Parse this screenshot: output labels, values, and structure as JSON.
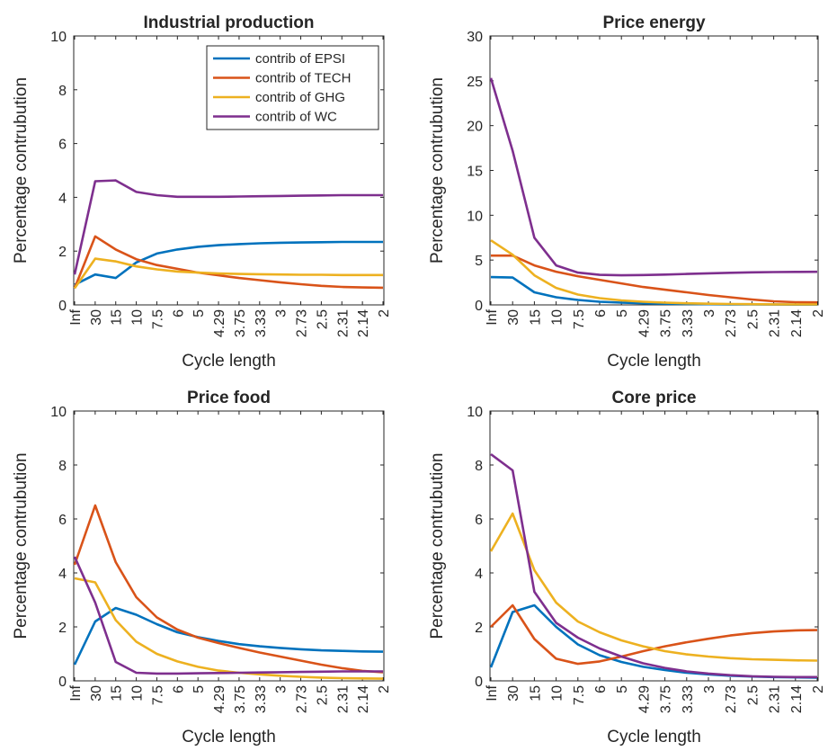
{
  "chart_data": [
    {
      "type": "line",
      "title": "Industrial production",
      "xlabel": "Cycle length",
      "ylabel": "Percentage contrubution",
      "ylim": [
        0,
        10
      ],
      "yticks": [
        "0",
        "2",
        "4",
        "6",
        "8",
        "10"
      ],
      "categories": [
        "Inf",
        "30",
        "15",
        "10",
        "7.5",
        "6",
        "5",
        "4.29",
        "3.75",
        "3.33",
        "3",
        "2.73",
        "2.5",
        "2.31",
        "2.14",
        "2"
      ],
      "series": [
        {
          "name": "contrib of EPSI",
          "values": [
            0.75,
            1.13,
            1.0,
            1.58,
            1.91,
            2.06,
            2.16,
            2.22,
            2.26,
            2.29,
            2.31,
            2.32,
            2.33,
            2.34,
            2.34,
            2.34
          ]
        },
        {
          "name": "contrib of TECH",
          "values": [
            0.62,
            2.55,
            2.06,
            1.7,
            1.48,
            1.34,
            1.2,
            1.1,
            1.0,
            0.92,
            0.84,
            0.77,
            0.71,
            0.67,
            0.65,
            0.64
          ]
        },
        {
          "name": "contrib of GHG",
          "values": [
            0.62,
            1.72,
            1.62,
            1.43,
            1.32,
            1.24,
            1.2,
            1.17,
            1.15,
            1.14,
            1.13,
            1.12,
            1.12,
            1.11,
            1.11,
            1.11
          ]
        },
        {
          "name": "contrib of WC",
          "values": [
            1.13,
            4.6,
            4.63,
            4.2,
            4.08,
            4.02,
            4.02,
            4.02,
            4.03,
            4.04,
            4.05,
            4.06,
            4.07,
            4.08,
            4.08,
            4.08
          ]
        }
      ],
      "legend": "top-right",
      "grid": false
    },
    {
      "type": "line",
      "title": "Price energy",
      "xlabel": "Cycle length",
      "ylabel": "Percentage contrubution",
      "ylim": [
        0,
        30
      ],
      "yticks": [
        "0",
        "5",
        "10",
        "15",
        "20",
        "25",
        "30"
      ],
      "categories": [
        "Inf",
        "30",
        "15",
        "10",
        "7.5",
        "6",
        "5",
        "4.29",
        "3.75",
        "3.33",
        "3",
        "2.73",
        "2.5",
        "2.31",
        "2.14",
        "2"
      ],
      "series": [
        {
          "name": "contrib of EPSI",
          "values": [
            3.1,
            3.05,
            1.4,
            0.85,
            0.55,
            0.35,
            0.25,
            0.18,
            0.13,
            0.1,
            0.08,
            0.06,
            0.05,
            0.04,
            0.03,
            0.03
          ]
        },
        {
          "name": "contrib of TECH",
          "values": [
            5.5,
            5.5,
            4.4,
            3.7,
            3.2,
            2.8,
            2.4,
            2.0,
            1.7,
            1.4,
            1.1,
            0.85,
            0.6,
            0.4,
            0.3,
            0.28
          ]
        },
        {
          "name": "contrib of GHG",
          "values": [
            7.2,
            5.6,
            3.3,
            1.9,
            1.15,
            0.75,
            0.5,
            0.35,
            0.25,
            0.18,
            0.13,
            0.1,
            0.08,
            0.06,
            0.05,
            0.05
          ]
        },
        {
          "name": "contrib of WC",
          "values": [
            25.3,
            17.2,
            7.5,
            4.4,
            3.6,
            3.35,
            3.3,
            3.33,
            3.38,
            3.45,
            3.52,
            3.58,
            3.63,
            3.66,
            3.68,
            3.69
          ]
        }
      ],
      "grid": false
    },
    {
      "type": "line",
      "title": "Price food",
      "xlabel": "Cycle length",
      "ylabel": "Percentage contrubution",
      "ylim": [
        0,
        10
      ],
      "yticks": [
        "0",
        "2",
        "4",
        "6",
        "8",
        "10"
      ],
      "categories": [
        "Inf",
        "30",
        "15",
        "10",
        "7.5",
        "6",
        "5",
        "4.29",
        "3.75",
        "3.33",
        "3",
        "2.73",
        "2.5",
        "2.31",
        "2.14",
        "2"
      ],
      "series": [
        {
          "name": "contrib of EPSI",
          "values": [
            0.6,
            2.2,
            2.7,
            2.45,
            2.1,
            1.8,
            1.62,
            1.48,
            1.36,
            1.28,
            1.22,
            1.17,
            1.13,
            1.11,
            1.09,
            1.08
          ]
        },
        {
          "name": "contrib of TECH",
          "values": [
            4.3,
            6.5,
            4.4,
            3.1,
            2.35,
            1.9,
            1.6,
            1.4,
            1.22,
            1.05,
            0.9,
            0.75,
            0.6,
            0.47,
            0.37,
            0.32
          ]
        },
        {
          "name": "contrib of GHG",
          "values": [
            3.8,
            3.65,
            2.25,
            1.45,
            1.0,
            0.72,
            0.52,
            0.38,
            0.3,
            0.24,
            0.19,
            0.15,
            0.12,
            0.1,
            0.09,
            0.08
          ]
        },
        {
          "name": "contrib of WC",
          "values": [
            4.6,
            2.9,
            0.7,
            0.3,
            0.27,
            0.27,
            0.28,
            0.29,
            0.3,
            0.31,
            0.32,
            0.33,
            0.34,
            0.35,
            0.35,
            0.35
          ]
        }
      ],
      "grid": false
    },
    {
      "type": "line",
      "title": "Core price",
      "xlabel": "Cycle length",
      "ylabel": "Percentage contrubution",
      "ylim": [
        0,
        10
      ],
      "yticks": [
        "0",
        "2",
        "4",
        "6",
        "8",
        "10"
      ],
      "categories": [
        "Inf",
        "30",
        "15",
        "10",
        "7.5",
        "6",
        "5",
        "4.29",
        "3.75",
        "3.33",
        "3",
        "2.73",
        "2.5",
        "2.31",
        "2.14",
        "2"
      ],
      "series": [
        {
          "name": "contrib of EPSI",
          "values": [
            0.5,
            2.55,
            2.8,
            2.0,
            1.35,
            0.95,
            0.7,
            0.52,
            0.4,
            0.3,
            0.24,
            0.19,
            0.16,
            0.14,
            0.13,
            0.12
          ]
        },
        {
          "name": "contrib of TECH",
          "values": [
            2.0,
            2.8,
            1.55,
            0.82,
            0.63,
            0.72,
            0.9,
            1.1,
            1.28,
            1.43,
            1.56,
            1.68,
            1.77,
            1.83,
            1.87,
            1.88
          ]
        },
        {
          "name": "contrib of GHG",
          "values": [
            4.8,
            6.2,
            4.1,
            2.9,
            2.2,
            1.8,
            1.5,
            1.28,
            1.1,
            0.98,
            0.9,
            0.84,
            0.8,
            0.78,
            0.76,
            0.75
          ]
        },
        {
          "name": "contrib of WC",
          "values": [
            8.4,
            7.8,
            3.3,
            2.15,
            1.6,
            1.2,
            0.9,
            0.65,
            0.48,
            0.35,
            0.27,
            0.21,
            0.17,
            0.15,
            0.14,
            0.14
          ]
        }
      ],
      "grid": false
    }
  ],
  "colors": [
    "#0072BD",
    "#D95319",
    "#EDB120",
    "#7E2F8E"
  ]
}
